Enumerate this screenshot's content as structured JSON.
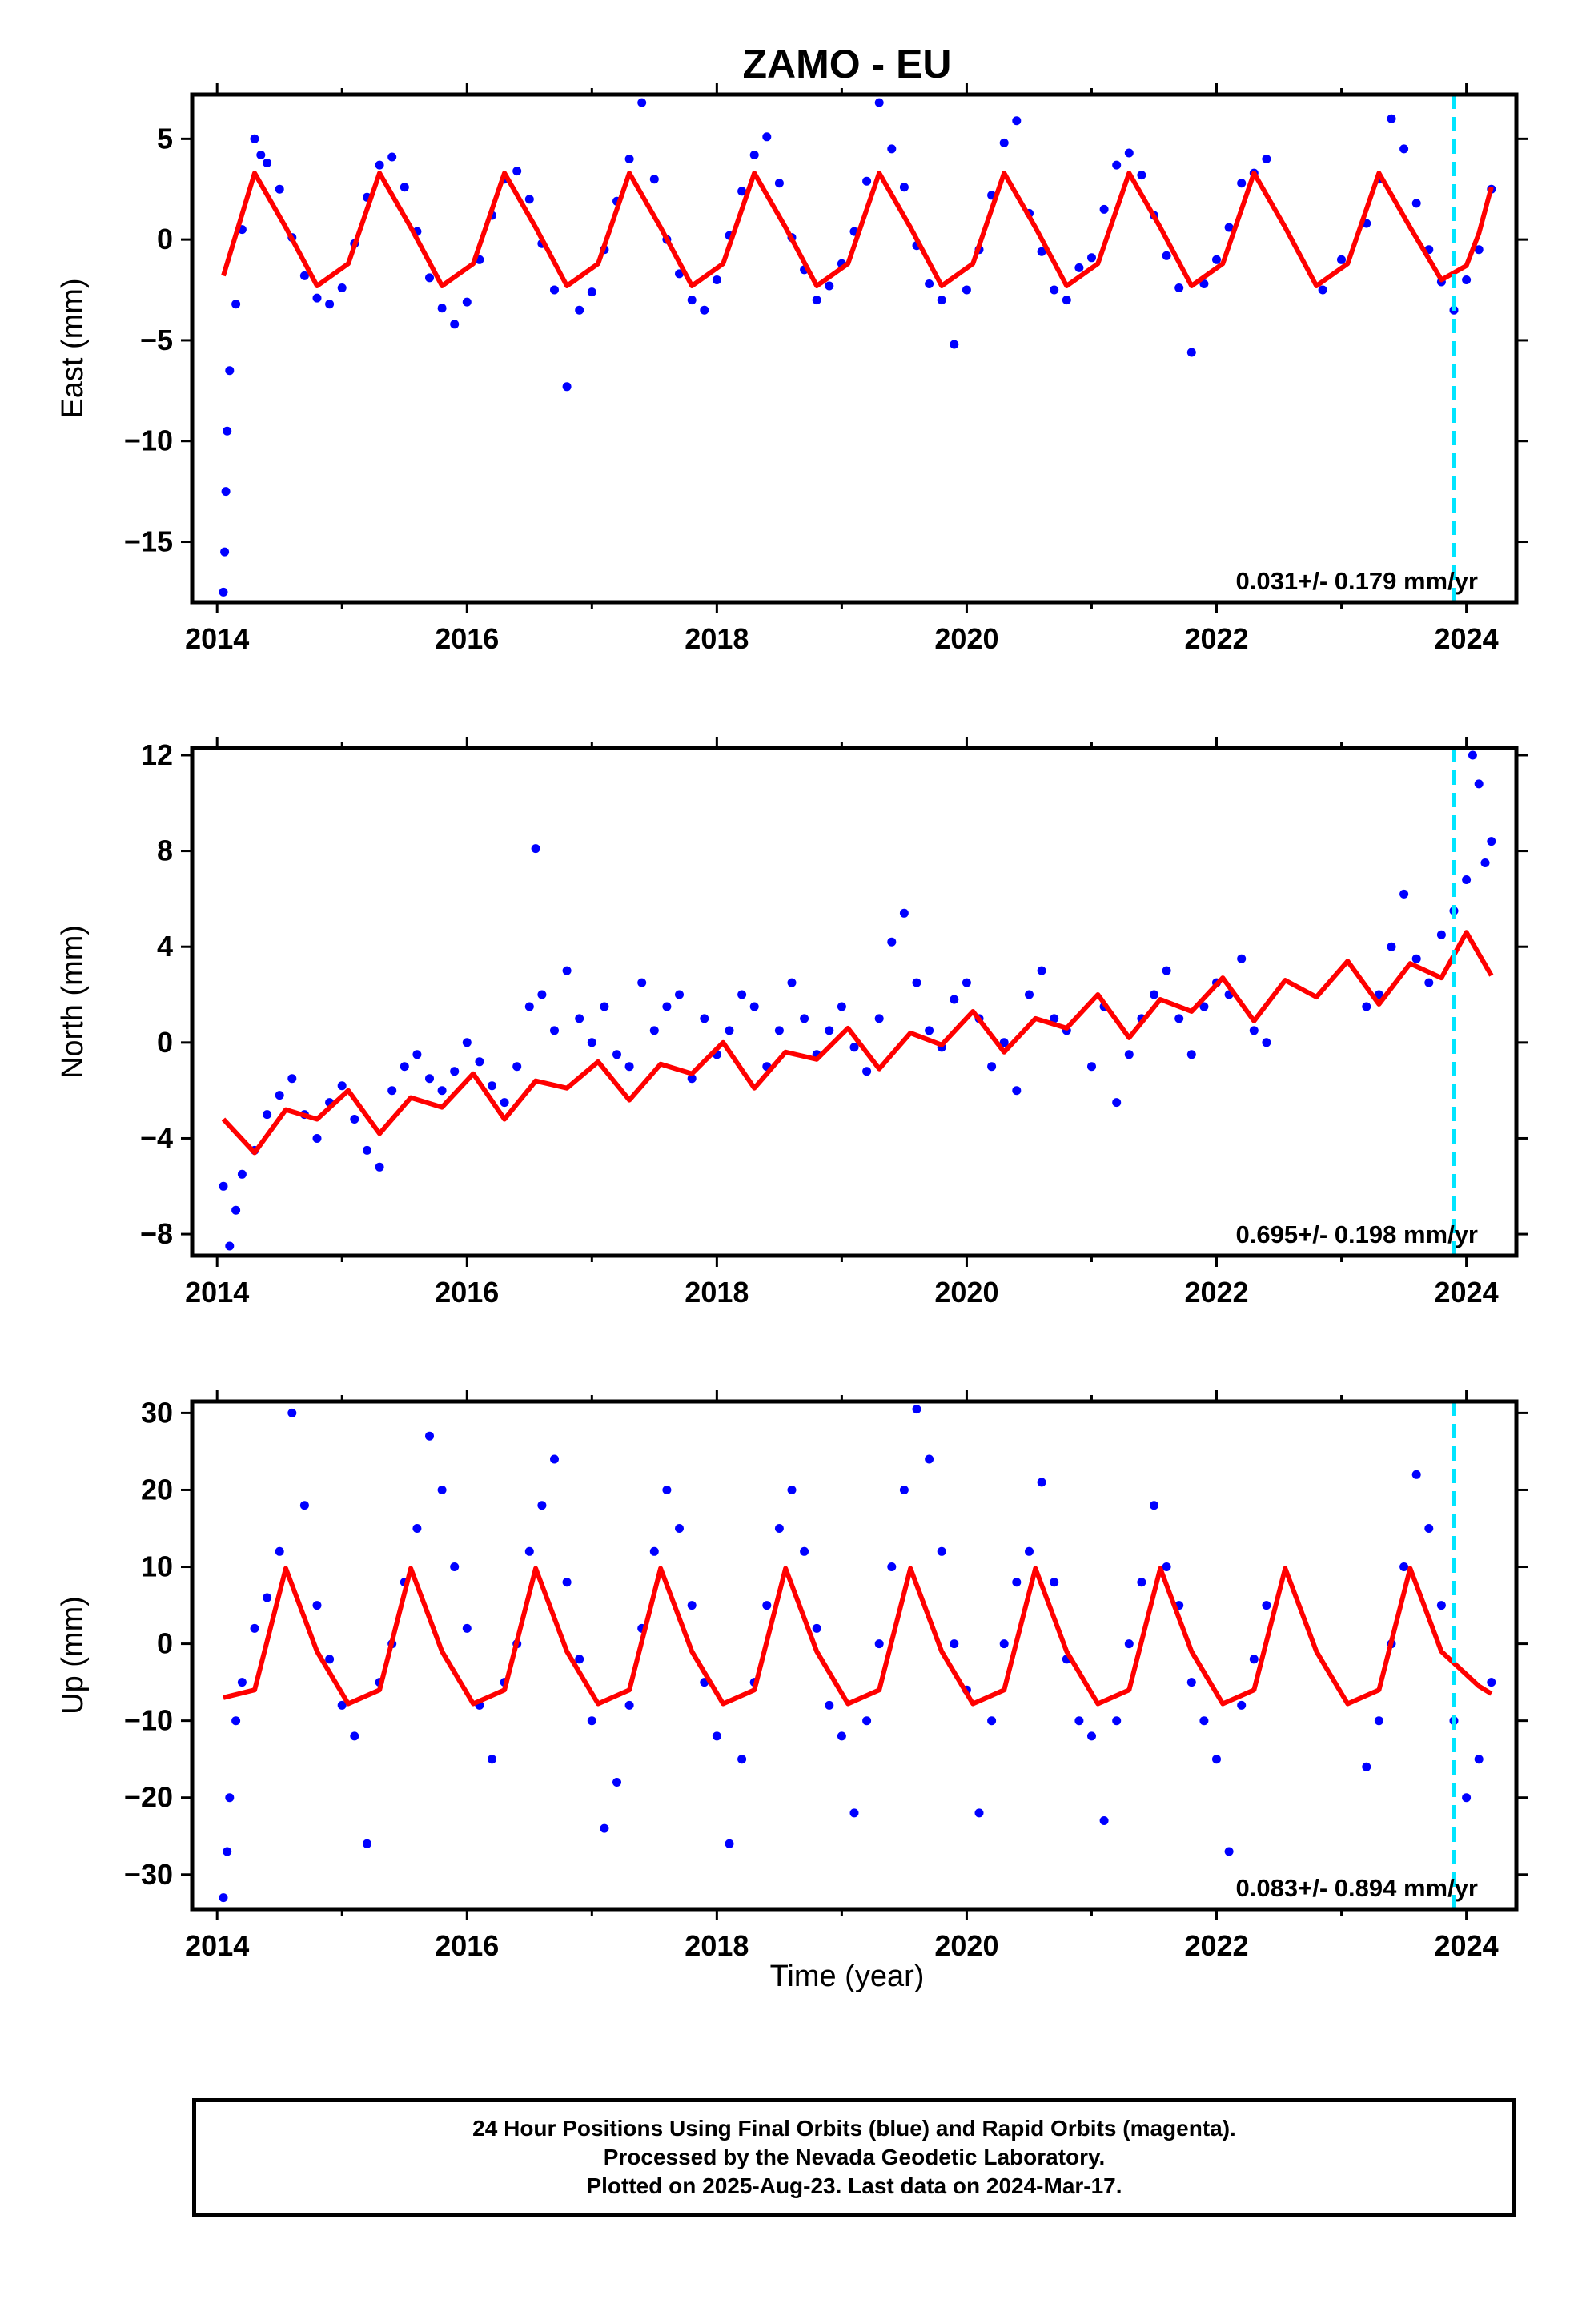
{
  "title": "ZAMO - EU",
  "xlabel": "Time (year)",
  "colors": {
    "final": "#0000ff",
    "rapid": "#ff00ff",
    "model": "#ff0000",
    "marker": "#00e5ff",
    "frame": "#000000"
  },
  "footer": [
    "24 Hour Positions Using Final Orbits (blue) and Rapid Orbits (magenta).",
    "Processed by the Nevada Geodetic Laboratory.",
    "Plotted on 2025-Aug-23. Last data on 2024-Mar-17."
  ],
  "chart_data": [
    {
      "type": "scatter",
      "ylabel": "East (mm)",
      "xlim": [
        2013.8,
        2024.4
      ],
      "ylim": [
        -18,
        7.2
      ],
      "xticks": [
        2014,
        2016,
        2018,
        2020,
        2022,
        2024
      ],
      "yticks": [
        5,
        0,
        -5,
        -10,
        -15
      ],
      "rate_label": "0.031+/- 0.179 mm/yr",
      "marker_x": 2023.9,
      "series": [
        {
          "kind": "points",
          "x": [
            2014.05,
            2014.06,
            2014.07,
            2014.08,
            2014.1,
            2014.15,
            2014.2,
            2014.3,
            2014.35,
            2014.4,
            2014.5,
            2014.6,
            2014.7,
            2014.8,
            2014.9,
            2015.0,
            2015.1,
            2015.2,
            2015.3,
            2015.4,
            2015.5,
            2015.6,
            2015.7,
            2015.8,
            2015.9,
            2016.0,
            2016.1,
            2016.2,
            2016.3,
            2016.4,
            2016.5,
            2016.6,
            2016.7,
            2016.8,
            2016.9,
            2017.0,
            2017.1,
            2017.2,
            2017.3,
            2017.4,
            2017.5,
            2017.6,
            2017.7,
            2017.8,
            2017.9,
            2018.0,
            2018.1,
            2018.2,
            2018.3,
            2018.4,
            2018.5,
            2018.6,
            2018.7,
            2018.8,
            2018.9,
            2019.0,
            2019.1,
            2019.2,
            2019.3,
            2019.4,
            2019.5,
            2019.6,
            2019.7,
            2019.8,
            2019.9,
            2020.0,
            2020.1,
            2020.2,
            2020.3,
            2020.4,
            2020.5,
            2020.6,
            2020.7,
            2020.8,
            2020.9,
            2021.0,
            2021.1,
            2021.2,
            2021.3,
            2021.4,
            2021.5,
            2021.6,
            2021.7,
            2021.8,
            2021.9,
            2022.0,
            2022.1,
            2022.2,
            2022.3,
            2022.4,
            2022.85,
            2023.0,
            2023.2,
            2023.3,
            2023.4,
            2023.5,
            2023.6,
            2023.7,
            2023.8,
            2023.9,
            2024.0,
            2024.1,
            2024.2
          ],
          "y": [
            -17.5,
            -15.5,
            -12.5,
            -9.5,
            -6.5,
            -3.2,
            0.5,
            5.0,
            4.2,
            3.8,
            2.5,
            0.1,
            -1.8,
            -2.9,
            -3.2,
            -2.4,
            -0.2,
            2.1,
            3.7,
            4.1,
            2.6,
            0.4,
            -1.9,
            -3.4,
            -4.2,
            -3.1,
            -1.0,
            1.2,
            3.0,
            3.4,
            2.0,
            -0.2,
            -2.5,
            -7.3,
            -3.5,
            -2.6,
            -0.5,
            1.9,
            4.0,
            6.8,
            3.0,
            0.0,
            -1.7,
            -3.0,
            -3.5,
            -2.0,
            0.2,
            2.4,
            4.2,
            5.1,
            2.8,
            0.1,
            -1.5,
            -3.0,
            -2.3,
            -1.2,
            0.4,
            2.9,
            6.8,
            4.5,
            2.6,
            -0.3,
            -2.2,
            -3.0,
            -5.2,
            -2.5,
            -0.5,
            2.2,
            4.8,
            5.9,
            1.3,
            -0.6,
            -2.5,
            -3.0,
            -1.4,
            -0.9,
            1.5,
            3.7,
            4.3,
            3.2,
            1.2,
            -0.8,
            -2.4,
            -5.6,
            -2.2,
            -1.0,
            0.6,
            2.8,
            3.3,
            4.0,
            -2.5,
            -1.0,
            0.8,
            3.0,
            6.0,
            4.5,
            1.8,
            -0.5,
            -2.1,
            -3.5,
            -2.0,
            -0.5,
            2.5
          ]
        },
        {
          "kind": "model",
          "x": [
            2014.05,
            2014.3,
            2014.55,
            2014.8,
            2015.05,
            2015.3,
            2015.55,
            2015.8,
            2016.05,
            2016.3,
            2016.55,
            2016.8,
            2017.05,
            2017.3,
            2017.55,
            2017.8,
            2018.05,
            2018.3,
            2018.55,
            2018.8,
            2019.05,
            2019.3,
            2019.55,
            2019.8,
            2020.05,
            2020.3,
            2020.55,
            2020.8,
            2021.05,
            2021.3,
            2021.55,
            2021.8,
            2022.05,
            2022.3,
            2022.55,
            2022.8,
            2023.05,
            2023.3,
            2023.55,
            2023.8,
            2024.0,
            2024.1,
            2024.2
          ],
          "y": [
            -1.8,
            3.3,
            0.6,
            -2.3,
            -1.2,
            3.3,
            0.6,
            -2.3,
            -1.2,
            3.3,
            0.6,
            -2.3,
            -1.2,
            3.3,
            0.6,
            -2.3,
            -1.2,
            3.3,
            0.6,
            -2.3,
            -1.2,
            3.3,
            0.6,
            -2.3,
            -1.2,
            3.3,
            0.6,
            -2.3,
            -1.2,
            3.3,
            0.6,
            -2.3,
            -1.2,
            3.3,
            0.6,
            -2.3,
            -1.2,
            3.3,
            0.6,
            -2.0,
            -1.3,
            0.3,
            2.6
          ]
        }
      ]
    },
    {
      "type": "scatter",
      "ylabel": "North (mm)",
      "xlim": [
        2013.8,
        2024.4
      ],
      "ylim": [
        -8.9,
        12.3
      ],
      "xticks": [
        2014,
        2016,
        2018,
        2020,
        2022,
        2024
      ],
      "yticks": [
        12,
        8,
        4,
        0,
        -4,
        -8
      ],
      "rate_label": "0.695+/- 0.198 mm/yr",
      "marker_x": 2023.9,
      "series": [
        {
          "kind": "points",
          "x": [
            2014.05,
            2014.1,
            2014.15,
            2014.2,
            2014.3,
            2014.4,
            2014.5,
            2014.6,
            2014.7,
            2014.8,
            2014.9,
            2015.0,
            2015.1,
            2015.2,
            2015.3,
            2015.4,
            2015.5,
            2015.6,
            2015.7,
            2015.8,
            2015.9,
            2016.0,
            2016.1,
            2016.2,
            2016.3,
            2016.4,
            2016.5,
            2016.55,
            2016.6,
            2016.7,
            2016.8,
            2016.9,
            2017.0,
            2017.1,
            2017.2,
            2017.3,
            2017.4,
            2017.5,
            2017.6,
            2017.7,
            2017.8,
            2017.9,
            2018.0,
            2018.1,
            2018.2,
            2018.3,
            2018.4,
            2018.5,
            2018.6,
            2018.7,
            2018.8,
            2018.9,
            2019.0,
            2019.1,
            2019.2,
            2019.3,
            2019.4,
            2019.5,
            2019.6,
            2019.7,
            2019.8,
            2019.9,
            2020.0,
            2020.1,
            2020.2,
            2020.3,
            2020.4,
            2020.5,
            2020.6,
            2020.7,
            2020.8,
            2021.0,
            2021.1,
            2021.2,
            2021.3,
            2021.4,
            2021.5,
            2021.6,
            2021.7,
            2021.8,
            2021.9,
            2022.0,
            2022.1,
            2022.2,
            2022.3,
            2022.4,
            2023.2,
            2023.3,
            2023.4,
            2023.5,
            2023.6,
            2023.7,
            2023.8,
            2023.9,
            2024.0,
            2024.05,
            2024.1,
            2024.15,
            2024.2
          ],
          "y": [
            -6.0,
            -8.5,
            -7.0,
            -5.5,
            -4.5,
            -3.0,
            -2.2,
            -1.5,
            -3.0,
            -4.0,
            -2.5,
            -1.8,
            -3.2,
            -4.5,
            -5.2,
            -2.0,
            -1.0,
            -0.5,
            -1.5,
            -2.0,
            -1.2,
            0.0,
            -0.8,
            -1.8,
            -2.5,
            -1.0,
            1.5,
            8.1,
            2.0,
            0.5,
            3.0,
            1.0,
            0.0,
            1.5,
            -0.5,
            -1.0,
            2.5,
            0.5,
            1.5,
            2.0,
            -1.5,
            1.0,
            -0.5,
            0.5,
            2.0,
            1.5,
            -1.0,
            0.5,
            2.5,
            1.0,
            -0.5,
            0.5,
            1.5,
            -0.2,
            -1.2,
            1.0,
            4.2,
            5.4,
            2.5,
            0.5,
            -0.2,
            1.8,
            2.5,
            1.0,
            -1.0,
            0.0,
            -2.0,
            2.0,
            3.0,
            1.0,
            0.5,
            -1.0,
            1.5,
            -2.5,
            -0.5,
            1.0,
            2.0,
            3.0,
            1.0,
            -0.5,
            1.5,
            2.5,
            2.0,
            3.5,
            0.5,
            0.0,
            1.5,
            2.0,
            4.0,
            6.2,
            3.5,
            2.5,
            4.5,
            5.5,
            6.8,
            12.0,
            10.8,
            7.5,
            8.4
          ]
        },
        {
          "kind": "model",
          "x": [
            2014.05,
            2014.3,
            2014.55,
            2014.8,
            2015.05,
            2015.3,
            2015.55,
            2015.8,
            2016.05,
            2016.3,
            2016.55,
            2016.8,
            2017.05,
            2017.3,
            2017.55,
            2017.8,
            2018.05,
            2018.3,
            2018.55,
            2018.8,
            2019.05,
            2019.3,
            2019.55,
            2019.8,
            2020.05,
            2020.3,
            2020.55,
            2020.8,
            2021.05,
            2021.3,
            2021.55,
            2021.8,
            2022.05,
            2022.3,
            2022.55,
            2022.8,
            2023.05,
            2023.3,
            2023.55,
            2023.8,
            2024.0,
            2024.1,
            2024.2
          ],
          "y": [
            -3.2,
            -4.6,
            -2.8,
            -3.2,
            -2.0,
            -3.8,
            -2.3,
            -2.7,
            -1.3,
            -3.2,
            -1.6,
            -1.9,
            -0.8,
            -2.4,
            -0.9,
            -1.3,
            0.0,
            -1.9,
            -0.4,
            -0.7,
            0.6,
            -1.1,
            0.4,
            -0.1,
            1.3,
            -0.4,
            1.0,
            0.6,
            2.0,
            0.2,
            1.8,
            1.3,
            2.7,
            0.9,
            2.6,
            1.9,
            3.4,
            1.6,
            3.3,
            2.7,
            4.6,
            3.7,
            2.8
          ]
        }
      ]
    },
    {
      "type": "scatter",
      "ylabel": "Up (mm)",
      "xlim": [
        2013.8,
        2024.4
      ],
      "ylim": [
        -34.5,
        31.5
      ],
      "xticks": [
        2014,
        2016,
        2018,
        2020,
        2022,
        2024
      ],
      "yticks": [
        30,
        20,
        10,
        0,
        -10,
        -20,
        -30
      ],
      "rate_label": "0.083+/- 0.894 mm/yr",
      "marker_x": 2023.9,
      "series": [
        {
          "kind": "points",
          "x": [
            2014.05,
            2014.08,
            2014.1,
            2014.15,
            2014.2,
            2014.3,
            2014.4,
            2014.5,
            2014.6,
            2014.7,
            2014.8,
            2014.9,
            2015.0,
            2015.1,
            2015.2,
            2015.3,
            2015.4,
            2015.5,
            2015.6,
            2015.7,
            2015.8,
            2015.9,
            2016.0,
            2016.1,
            2016.2,
            2016.3,
            2016.4,
            2016.5,
            2016.6,
            2016.7,
            2016.8,
            2016.9,
            2017.0,
            2017.1,
            2017.2,
            2017.3,
            2017.4,
            2017.5,
            2017.6,
            2017.7,
            2017.8,
            2017.9,
            2018.0,
            2018.1,
            2018.2,
            2018.3,
            2018.4,
            2018.5,
            2018.6,
            2018.7,
            2018.8,
            2018.9,
            2019.0,
            2019.1,
            2019.2,
            2019.3,
            2019.4,
            2019.5,
            2019.6,
            2019.7,
            2019.8,
            2019.9,
            2020.0,
            2020.1,
            2020.2,
            2020.3,
            2020.4,
            2020.5,
            2020.6,
            2020.7,
            2020.8,
            2020.9,
            2021.0,
            2021.1,
            2021.2,
            2021.3,
            2021.4,
            2021.5,
            2021.6,
            2021.7,
            2021.8,
            2021.9,
            2022.0,
            2022.1,
            2022.2,
            2022.3,
            2022.4,
            2023.2,
            2023.3,
            2023.4,
            2023.5,
            2023.6,
            2023.7,
            2023.8,
            2023.9,
            2024.0,
            2024.1,
            2024.2
          ],
          "y": [
            -33.0,
            -27.0,
            -20.0,
            -10.0,
            -5.0,
            2.0,
            6.0,
            12.0,
            30.0,
            18.0,
            5.0,
            -2.0,
            -8.0,
            -12.0,
            -26.0,
            -5.0,
            0.0,
            8.0,
            15.0,
            27.0,
            20.0,
            10.0,
            2.0,
            -8.0,
            -15.0,
            -5.0,
            0.0,
            12.0,
            18.0,
            24.0,
            8.0,
            -2.0,
            -10.0,
            -24.0,
            -18.0,
            -8.0,
            2.0,
            12.0,
            20.0,
            15.0,
            5.0,
            -5.0,
            -12.0,
            -26.0,
            -15.0,
            -5.0,
            5.0,
            15.0,
            20.0,
            12.0,
            2.0,
            -8.0,
            -12.0,
            -22.0,
            -10.0,
            0.0,
            10.0,
            20.0,
            30.5,
            24.0,
            12.0,
            0.0,
            -6.0,
            -22.0,
            -10.0,
            0.0,
            8.0,
            12.0,
            21.0,
            8.0,
            -2.0,
            -10.0,
            -12.0,
            -23.0,
            -10.0,
            0.0,
            8.0,
            18.0,
            10.0,
            5.0,
            -5.0,
            -10.0,
            -15.0,
            -27.0,
            -8.0,
            -2.0,
            5.0,
            -16.0,
            -10.0,
            0.0,
            10.0,
            22.0,
            15.0,
            5.0,
            -10.0,
            -20.0,
            -15.0,
            -5.0
          ]
        },
        {
          "kind": "model",
          "x": [
            2014.05,
            2014.3,
            2014.55,
            2014.8,
            2015.05,
            2015.3,
            2015.55,
            2015.8,
            2016.05,
            2016.3,
            2016.55,
            2016.8,
            2017.05,
            2017.3,
            2017.55,
            2017.8,
            2018.05,
            2018.3,
            2018.55,
            2018.8,
            2019.05,
            2019.3,
            2019.55,
            2019.8,
            2020.05,
            2020.3,
            2020.55,
            2020.8,
            2021.05,
            2021.3,
            2021.55,
            2021.8,
            2022.05,
            2022.3,
            2022.55,
            2022.8,
            2023.05,
            2023.3,
            2023.55,
            2023.8,
            2024.0,
            2024.1,
            2024.2
          ],
          "y": [
            -7.0,
            -6.0,
            9.8,
            -1.0,
            -7.8,
            -6.0,
            9.8,
            -1.0,
            -7.8,
            -6.0,
            9.8,
            -1.0,
            -7.8,
            -6.0,
            9.8,
            -1.0,
            -7.8,
            -6.0,
            9.8,
            -1.0,
            -7.8,
            -6.0,
            9.8,
            -1.0,
            -7.8,
            -6.0,
            9.8,
            -1.0,
            -7.8,
            -6.0,
            9.8,
            -1.0,
            -7.8,
            -6.0,
            9.8,
            -1.0,
            -7.8,
            -6.0,
            9.8,
            -1.0,
            -4.0,
            -5.5,
            -6.5
          ]
        }
      ]
    }
  ]
}
